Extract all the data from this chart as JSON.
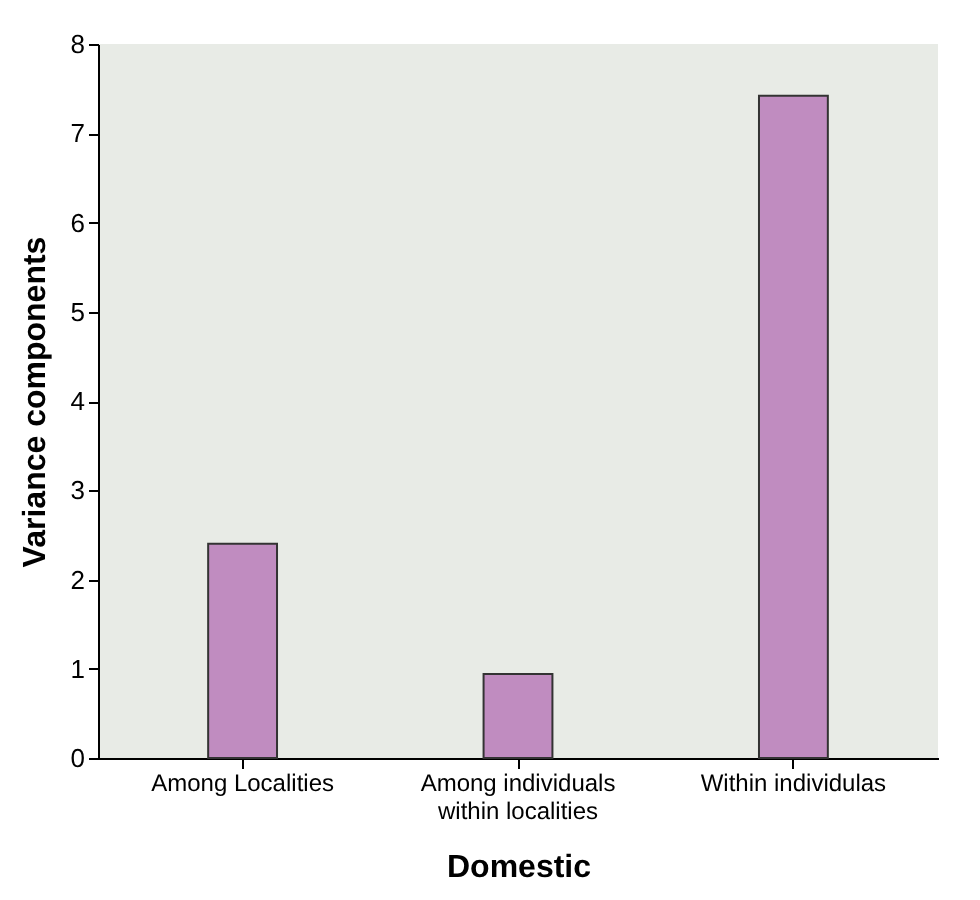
{
  "chart_data": {
    "type": "bar",
    "xlabel": "Domestic",
    "ylabel": "Variance components",
    "categories": [
      "Among Localities",
      "Among individuals within localities",
      "Within individulas"
    ],
    "values": [
      2.4,
      0.94,
      7.42
    ],
    "color": "#c08cc0",
    "ylim": [
      0,
      8
    ],
    "yticks": [
      0,
      1,
      2,
      3,
      4,
      5,
      6,
      7,
      8
    ],
    "grid": false
  }
}
